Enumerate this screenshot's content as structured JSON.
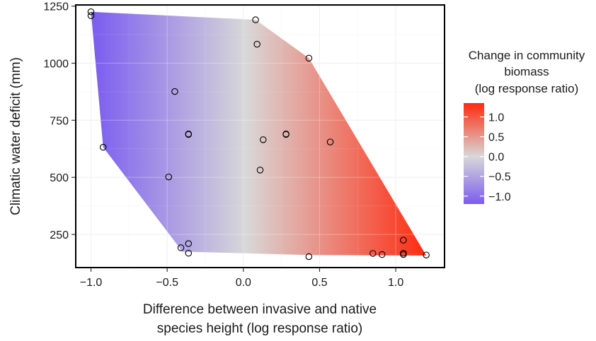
{
  "chart_data": {
    "type": "scatter",
    "title": "",
    "xlabel_lines": [
      "Difference between invasive and native",
      "species height (log response ratio)"
    ],
    "ylabel": "Climatic water deficit (mm)",
    "xlim": [
      -1.1,
      1.32
    ],
    "ylim": [
      105,
      1255
    ],
    "x_ticks": [
      -1.0,
      -0.5,
      0.0,
      0.5,
      1.0
    ],
    "x_tick_labels": [
      "−1.0",
      "−0.5",
      "0.0",
      "0.5",
      "1.0"
    ],
    "y_ticks": [
      250,
      500,
      750,
      1000,
      1250
    ],
    "y_tick_labels": [
      "250",
      "500",
      "750",
      "1000",
      "1250"
    ],
    "grid": true,
    "hull": [
      [
        -1.0,
        1225
      ],
      [
        0.08,
        1190
      ],
      [
        0.43,
        1022
      ],
      [
        1.2,
        158
      ],
      [
        0.43,
        160
      ],
      [
        -0.4,
        175
      ],
      [
        -0.92,
        632
      ]
    ],
    "points": [
      {
        "x": -1.0,
        "y": 1225
      },
      {
        "x": -1.0,
        "y": 1208
      },
      {
        "x": 0.08,
        "y": 1190
      },
      {
        "x": 0.09,
        "y": 1083
      },
      {
        "x": 0.43,
        "y": 1022
      },
      {
        "x": -0.45,
        "y": 876
      },
      {
        "x": -0.36,
        "y": 690
      },
      {
        "x": -0.36,
        "y": 688
      },
      {
        "x": 0.28,
        "y": 690
      },
      {
        "x": 0.28,
        "y": 688
      },
      {
        "x": 0.13,
        "y": 665
      },
      {
        "x": 0.57,
        "y": 655
      },
      {
        "x": -0.92,
        "y": 632
      },
      {
        "x": 0.11,
        "y": 532
      },
      {
        "x": -0.49,
        "y": 502
      },
      {
        "x": -0.36,
        "y": 210
      },
      {
        "x": -0.41,
        "y": 192
      },
      {
        "x": -0.36,
        "y": 168
      },
      {
        "x": 0.85,
        "y": 167
      },
      {
        "x": 0.91,
        "y": 162
      },
      {
        "x": 1.05,
        "y": 225
      },
      {
        "x": 1.05,
        "y": 168
      },
      {
        "x": 1.05,
        "y": 162
      },
      {
        "x": 1.2,
        "y": 160
      },
      {
        "x": 0.43,
        "y": 153
      }
    ],
    "fill_scale": {
      "low": -1.2,
      "mid": 0.0,
      "high": 1.3,
      "low_color": "#7b5cf0",
      "mid_color": "#d8d8d8",
      "high_color": "#ff2a0f"
    },
    "legend": {
      "title_lines": [
        "Change in community",
        "biomass",
        "(log response ratio)"
      ],
      "position": "right",
      "ticks": [
        1.0,
        0.5,
        0.0,
        -0.5,
        -1.0
      ],
      "tick_labels": [
        "1.0",
        "0.5",
        "0.0",
        "−0.5",
        "−1.0"
      ],
      "range": [
        -1.2,
        1.35
      ]
    }
  }
}
